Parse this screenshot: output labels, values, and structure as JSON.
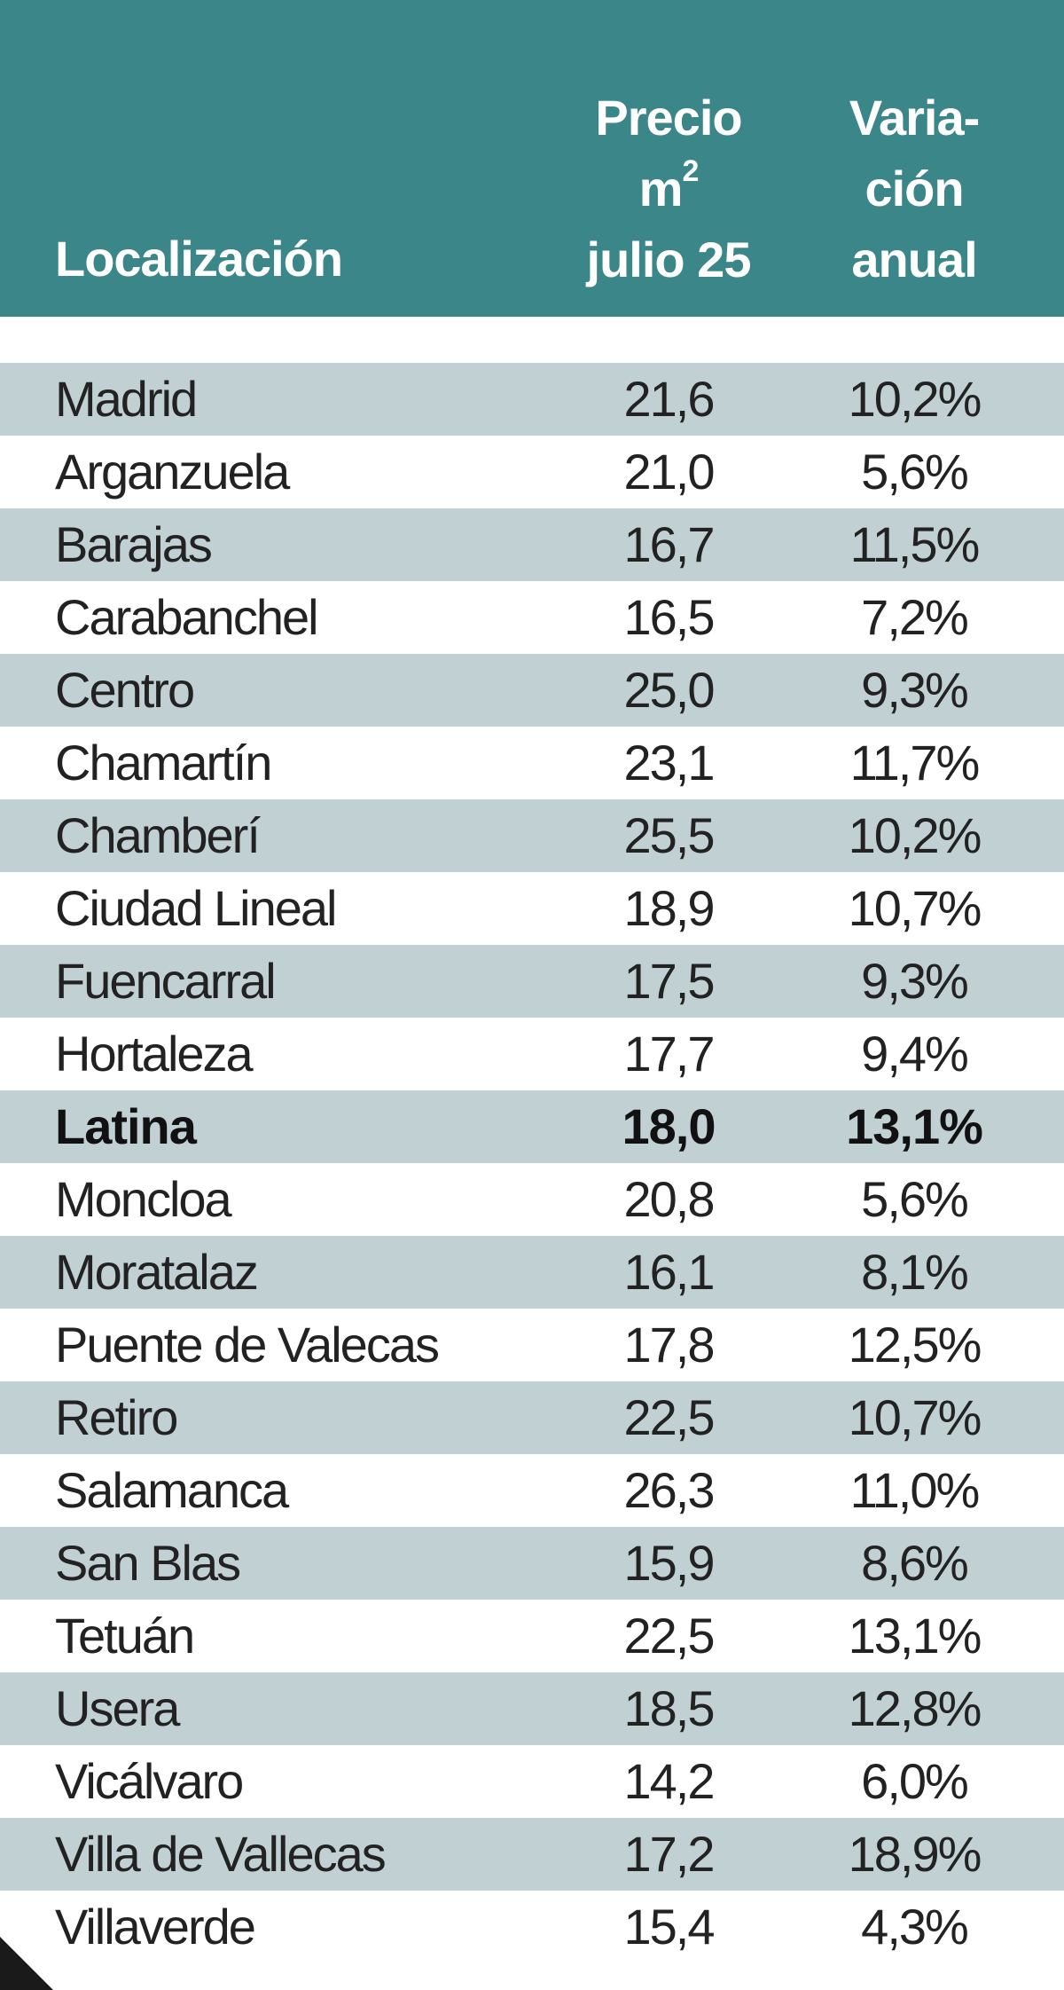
{
  "header": {
    "location": "Localización",
    "price_line1": "Precio",
    "price_line2": "m",
    "price_sup": "2",
    "price_line3": "julio 25",
    "var_line1": "Varia-",
    "var_line2": "ción",
    "var_line3": "anual"
  },
  "colors": {
    "header_bg": "#3a8689",
    "stripe": "#c1d0d3",
    "text": "#222222"
  },
  "chart_data": {
    "type": "table",
    "columns": [
      "Localización",
      "Precio m2 julio 25",
      "Variación anual"
    ],
    "rows": [
      {
        "name": "Madrid",
        "price": "21,6",
        "change": "10,2%",
        "bold": false
      },
      {
        "name": "Arganzuela",
        "price": "21,0",
        "change": "5,6%",
        "bold": false
      },
      {
        "name": "Barajas",
        "price": "16,7",
        "change": "11,5%",
        "bold": false
      },
      {
        "name": "Carabanchel",
        "price": "16,5",
        "change": "7,2%",
        "bold": false
      },
      {
        "name": "Centro",
        "price": "25,0",
        "change": "9,3%",
        "bold": false
      },
      {
        "name": "Chamartín",
        "price": "23,1",
        "change": "11,7%",
        "bold": false
      },
      {
        "name": "Chamberí",
        "price": "25,5",
        "change": "10,2%",
        "bold": false
      },
      {
        "name": "Ciudad Lineal",
        "price": "18,9",
        "change": "10,7%",
        "bold": false
      },
      {
        "name": "Fuencarral",
        "price": "17,5",
        "change": "9,3%",
        "bold": false
      },
      {
        "name": "Hortaleza",
        "price": "17,7",
        "change": "9,4%",
        "bold": false
      },
      {
        "name": "Latina",
        "price": "18,0",
        "change": "13,1%",
        "bold": true
      },
      {
        "name": "Moncloa",
        "price": "20,8",
        "change": "5,6%",
        "bold": false
      },
      {
        "name": "Moratalaz",
        "price": "16,1",
        "change": "8,1%",
        "bold": false
      },
      {
        "name": "Puente de Valecas",
        "price": "17,8",
        "change": "12,5%",
        "bold": false
      },
      {
        "name": "Retiro",
        "price": "22,5",
        "change": "10,7%",
        "bold": false
      },
      {
        "name": "Salamanca",
        "price": "26,3",
        "change": "11,0%",
        "bold": false
      },
      {
        "name": "San Blas",
        "price": "15,9",
        "change": "8,6%",
        "bold": false
      },
      {
        "name": "Tetuán",
        "price": "22,5",
        "change": "13,1%",
        "bold": false
      },
      {
        "name": "Usera",
        "price": "18,5",
        "change": "12,8%",
        "bold": false
      },
      {
        "name": "Vicálvaro",
        "price": "14,2",
        "change": "6,0%",
        "bold": false
      },
      {
        "name": "Villa de Vallecas",
        "price": "17,2",
        "change": "18,9%",
        "bold": false
      },
      {
        "name": "Villaverde",
        "price": "15,4",
        "change": "4,3%",
        "bold": false
      }
    ]
  }
}
